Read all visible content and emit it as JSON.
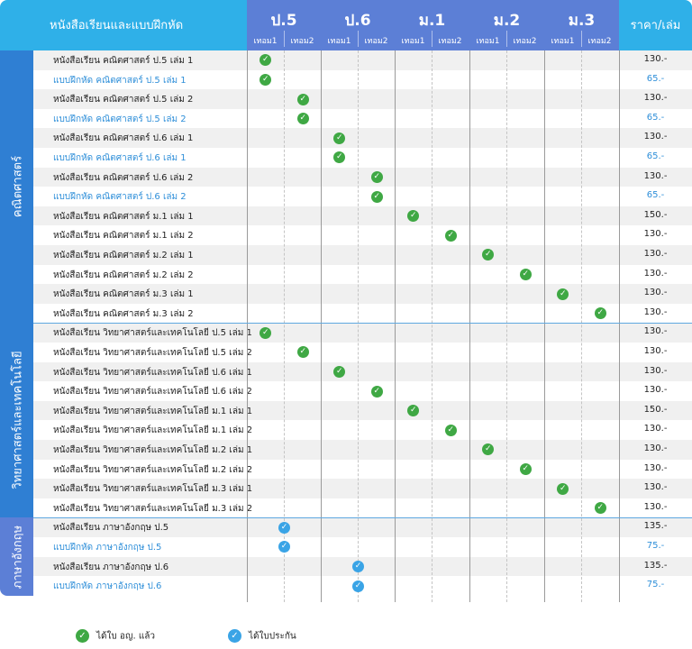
{
  "header": {
    "title": "หนังสือเรียนและแบบฝึกหัด",
    "price": "ราคา/เล่ม",
    "grades": [
      "ป.5",
      "ป.6",
      "ม.1",
      "ม.2",
      "ม.3"
    ],
    "sem1": "เทอม1",
    "sem2": "เทอม2"
  },
  "categories": [
    {
      "label": "คณิตศาสตร์",
      "color": "#2f7fd3"
    },
    {
      "label": "วิทยาศาสตร์และเทคโนโลยี",
      "color": "#2f7fd3"
    },
    {
      "label": "ภาษาอังกฤษ",
      "color": "#5c7fd6"
    }
  ],
  "rows": [
    {
      "name": "หนังสือเรียน คณิตศาสตร์ ป.5 เล่ม 1",
      "price": "130.-",
      "col": 0,
      "mark": "green",
      "wb": false,
      "cat": 0
    },
    {
      "name": "แบบฝึกหัด คณิตศาสตร์ ป.5 เล่ม 1",
      "price": "65.-",
      "col": 0,
      "mark": "green",
      "wb": true,
      "cat": 0
    },
    {
      "name": "หนังสือเรียน คณิตศาสตร์ ป.5 เล่ม 2",
      "price": "130.-",
      "col": 1,
      "mark": "green",
      "wb": false,
      "cat": 0
    },
    {
      "name": "แบบฝึกหัด คณิตศาสตร์ ป.5 เล่ม 2",
      "price": "65.-",
      "col": 1,
      "mark": "green",
      "wb": true,
      "cat": 0
    },
    {
      "name": "หนังสือเรียน คณิตศาสตร์ ป.6 เล่ม 1",
      "price": "130.-",
      "col": 2,
      "mark": "green",
      "wb": false,
      "cat": 0
    },
    {
      "name": "แบบฝึกหัด คณิตศาสตร์ ป.6 เล่ม 1",
      "price": "65.-",
      "col": 2,
      "mark": "green",
      "wb": true,
      "cat": 0
    },
    {
      "name": "หนังสือเรียน คณิตศาสตร์ ป.6 เล่ม 2",
      "price": "130.-",
      "col": 3,
      "mark": "green",
      "wb": false,
      "cat": 0
    },
    {
      "name": "แบบฝึกหัด คณิตศาสตร์ ป.6 เล่ม 2",
      "price": "65.-",
      "col": 3,
      "mark": "green",
      "wb": true,
      "cat": 0
    },
    {
      "name": "หนังสือเรียน คณิตศาสตร์ ม.1 เล่ม 1",
      "price": "150.-",
      "col": 4,
      "mark": "green",
      "wb": false,
      "cat": 0
    },
    {
      "name": "หนังสือเรียน คณิตศาสตร์ ม.1 เล่ม 2",
      "price": "130.-",
      "col": 5,
      "mark": "green",
      "wb": false,
      "cat": 0
    },
    {
      "name": "หนังสือเรียน คณิตศาสตร์ ม.2 เล่ม 1",
      "price": "130.-",
      "col": 6,
      "mark": "green",
      "wb": false,
      "cat": 0
    },
    {
      "name": "หนังสือเรียน คณิตศาสตร์ ม.2 เล่ม 2",
      "price": "130.-",
      "col": 7,
      "mark": "green",
      "wb": false,
      "cat": 0
    },
    {
      "name": "หนังสือเรียน คณิตศาสตร์ ม.3 เล่ม 1",
      "price": "130.-",
      "col": 8,
      "mark": "green",
      "wb": false,
      "cat": 0
    },
    {
      "name": "หนังสือเรียน คณิตศาสตร์ ม.3 เล่ม 2",
      "price": "130.-",
      "col": 9,
      "mark": "green",
      "wb": false,
      "cat": 0
    },
    {
      "name": "หนังสือเรียน วิทยาศาสตร์และเทคโนโลยี ป.5 เล่ม 1",
      "price": "130.-",
      "col": 0,
      "mark": "green",
      "wb": false,
      "cat": 1
    },
    {
      "name": "หนังสือเรียน วิทยาศาสตร์และเทคโนโลยี ป.5 เล่ม 2",
      "price": "130.-",
      "col": 1,
      "mark": "green",
      "wb": false,
      "cat": 1
    },
    {
      "name": "หนังสือเรียน วิทยาศาสตร์และเทคโนโลยี ป.6 เล่ม 1",
      "price": "130.-",
      "col": 2,
      "mark": "green",
      "wb": false,
      "cat": 1
    },
    {
      "name": "หนังสือเรียน วิทยาศาสตร์และเทคโนโลยี ป.6 เล่ม 2",
      "price": "130.-",
      "col": 3,
      "mark": "green",
      "wb": false,
      "cat": 1
    },
    {
      "name": "หนังสือเรียน วิทยาศาสตร์และเทคโนโลยี ม.1 เล่ม 1",
      "price": "150.-",
      "col": 4,
      "mark": "green",
      "wb": false,
      "cat": 1
    },
    {
      "name": "หนังสือเรียน วิทยาศาสตร์และเทคโนโลยี ม.1 เล่ม 2",
      "price": "130.-",
      "col": 5,
      "mark": "green",
      "wb": false,
      "cat": 1
    },
    {
      "name": "หนังสือเรียน วิทยาศาสตร์และเทคโนโลยี ม.2 เล่ม 1",
      "price": "130.-",
      "col": 6,
      "mark": "green",
      "wb": false,
      "cat": 1
    },
    {
      "name": "หนังสือเรียน วิทยาศาสตร์และเทคโนโลยี ม.2 เล่ม 2",
      "price": "130.-",
      "col": 7,
      "mark": "green",
      "wb": false,
      "cat": 1
    },
    {
      "name": "หนังสือเรียน วิทยาศาสตร์และเทคโนโลยี ม.3 เล่ม 1",
      "price": "130.-",
      "col": 8,
      "mark": "green",
      "wb": false,
      "cat": 1
    },
    {
      "name": "หนังสือเรียน วิทยาศาสตร์และเทคโนโลยี ม.3 เล่ม 2",
      "price": "130.-",
      "col": 9,
      "mark": "green",
      "wb": false,
      "cat": 1
    },
    {
      "name": "หนังสือเรียน ภาษาอังกฤษ ป.5",
      "price": "135.-",
      "col": 0.5,
      "mark": "blue",
      "wb": false,
      "cat": 2
    },
    {
      "name": "แบบฝึกหัด ภาษาอังกฤษ ป.5",
      "price": "75.-",
      "col": 0.5,
      "mark": "blue",
      "wb": true,
      "cat": 2
    },
    {
      "name": "หนังสือเรียน ภาษาอังกฤษ ป.6",
      "price": "135.-",
      "col": 2.5,
      "mark": "blue",
      "wb": false,
      "cat": 2
    },
    {
      "name": "แบบฝึกหัด ภาษาอังกฤษ ป.6",
      "price": "75.-",
      "col": 2.5,
      "mark": "blue",
      "wb": true,
      "cat": 2
    }
  ],
  "legend": {
    "approved": "ได้ใบ อญ. แล้ว",
    "certified": "ได้ใบประกัน"
  },
  "colors": {
    "header_blue": "#2fb0e8",
    "grade_blue": "#5c7fd6",
    "check_green": "#3fa844",
    "check_blue": "#3aa4e6",
    "workbook_text": "#2f8fd9"
  }
}
